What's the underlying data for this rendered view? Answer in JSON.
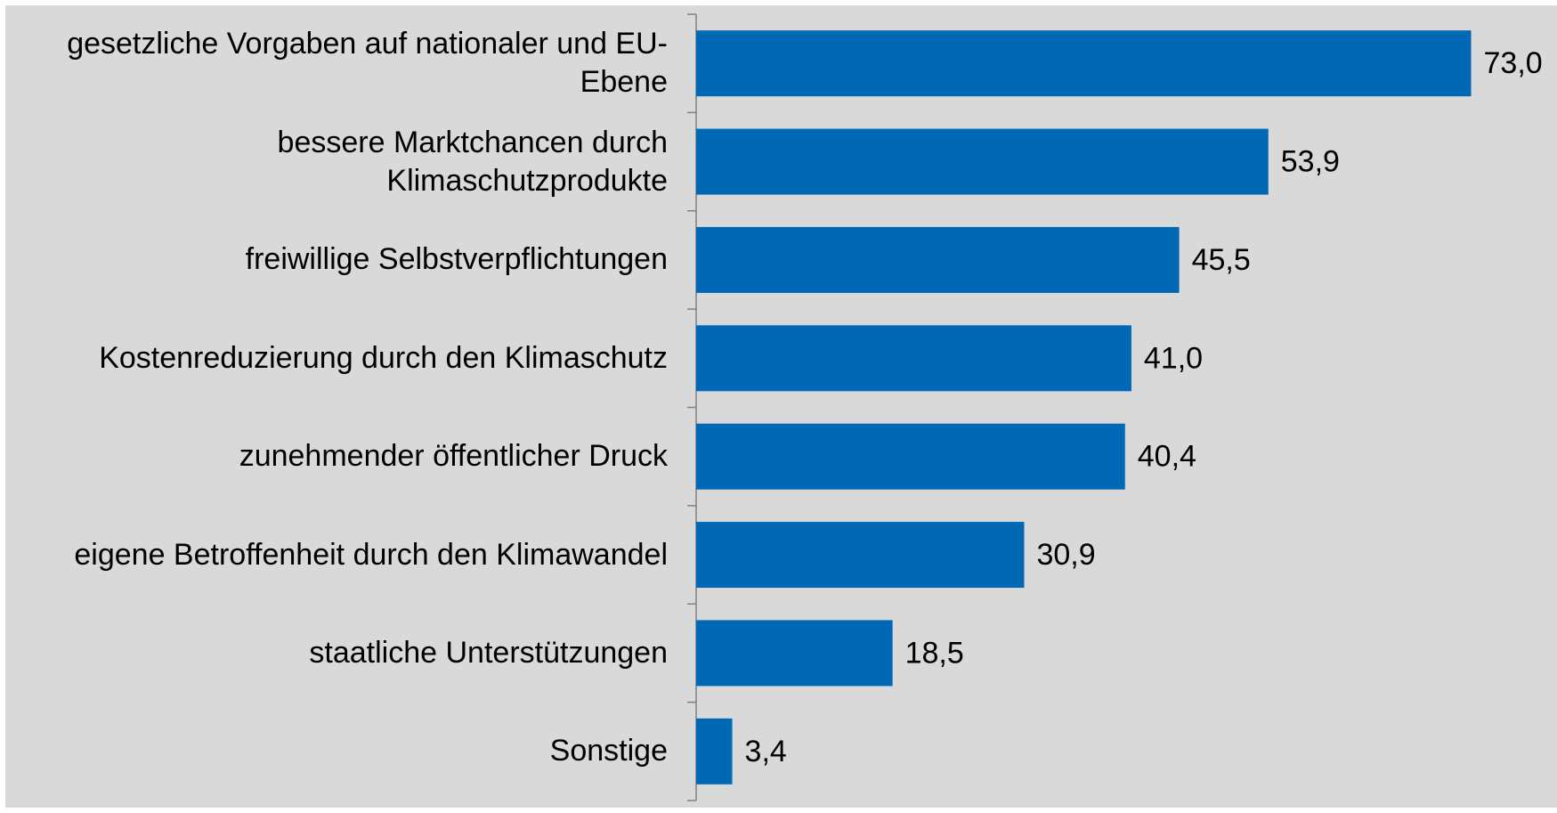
{
  "chart_data": {
    "type": "bar",
    "orientation": "horizontal",
    "categories": [
      "gesetzliche Vorgaben auf nationaler und EU-Ebene",
      "bessere Marktchancen durch Klimaschutzprodukte",
      "freiwillige Selbstverpflichtungen",
      "Kostenreduzierung durch den Klimaschutz",
      "zunehmender öffentlicher Druck",
      "eigene Betroffenheit durch den Klimawandel",
      "staatliche Unterstützungen",
      "Sonstige"
    ],
    "values": [
      73.0,
      53.9,
      45.5,
      41.0,
      40.4,
      30.9,
      18.5,
      3.4
    ],
    "value_labels": [
      "73,0",
      "53,9",
      "45,5",
      "41,0",
      "40,4",
      "30,9",
      "18,5",
      "3,4"
    ],
    "color": "#0068b4",
    "xlim": [
      0,
      80
    ]
  }
}
